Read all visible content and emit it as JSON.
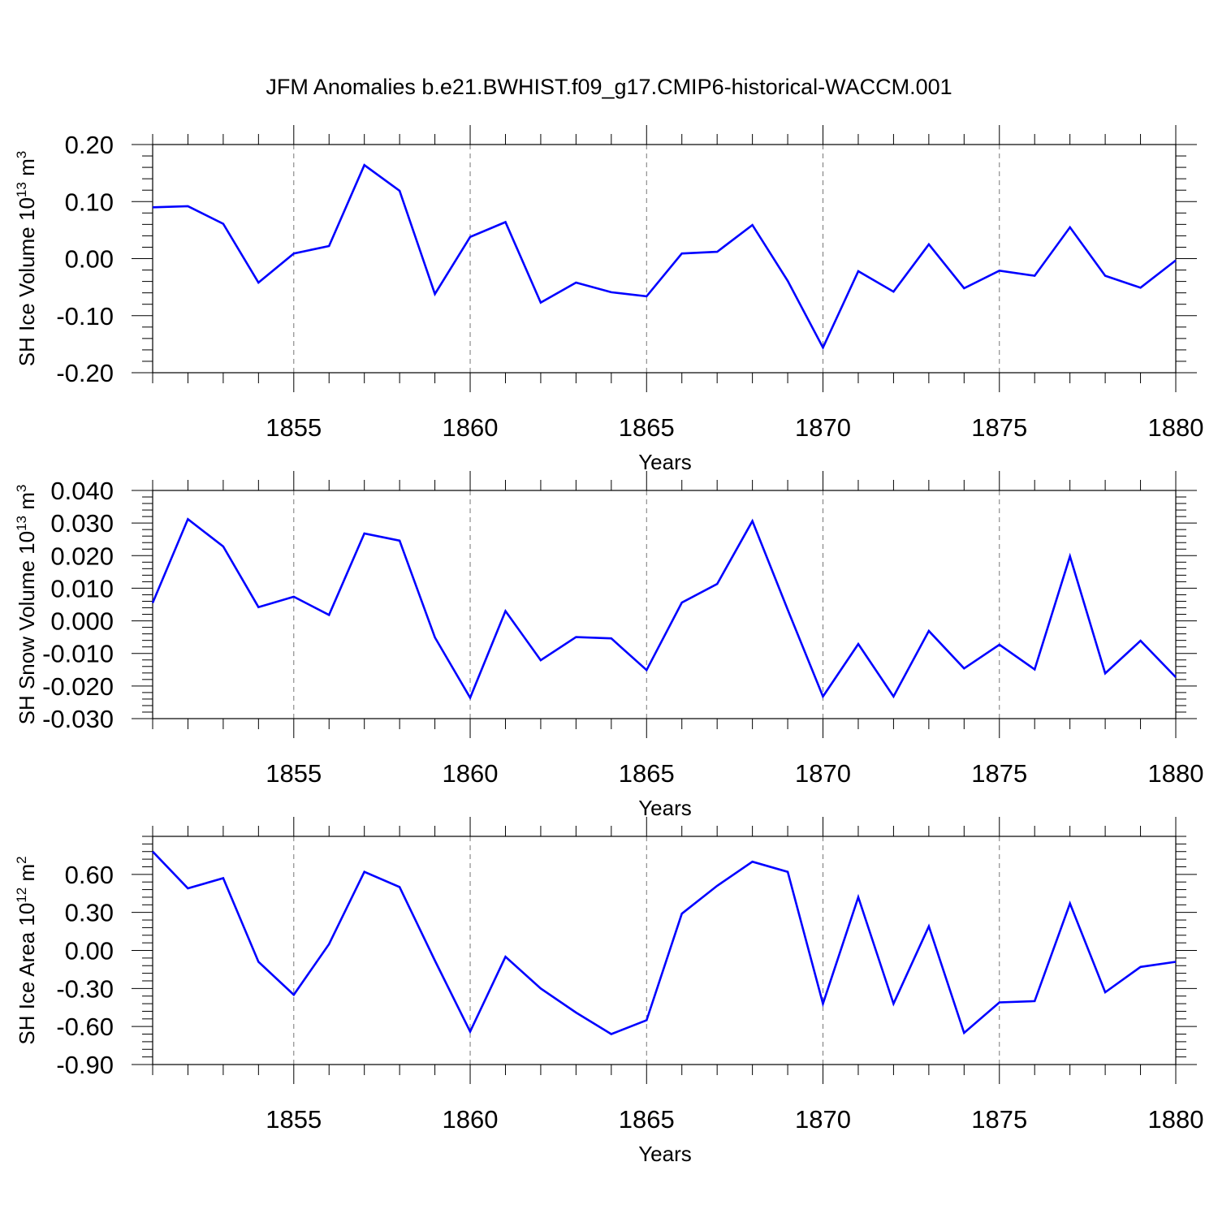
{
  "title": "JFM Anomalies b.e21.BWHIST.f09_g17.CMIP6-historical-WACCM.001",
  "chart_data": [
    {
      "type": "line",
      "ylabel": "SH Ice Volume 10",
      "ylabel_sup": "13",
      "ylabel_unit": " m",
      "ylabel_unit_sup": "3",
      "xlabel": "Years",
      "xlim": [
        1851,
        1880
      ],
      "ylim": [
        -0.2,
        0.2
      ],
      "yticks": [
        -0.2,
        -0.1,
        0.0,
        0.1,
        0.2
      ],
      "ytick_labels": [
        "-0.20",
        "-0.10",
        "0.00",
        "0.10",
        "0.20"
      ],
      "xticks": [
        1855,
        1860,
        1865,
        1870,
        1875,
        1880
      ],
      "xtick_labels": [
        "1855",
        "1860",
        "1865",
        "1870",
        "1875",
        "1880"
      ],
      "grid": "vertical dashed at labeled years",
      "color": "#0000ff",
      "x": [
        1851,
        1852,
        1853,
        1854,
        1855,
        1856,
        1857,
        1858,
        1859,
        1860,
        1861,
        1862,
        1863,
        1864,
        1865,
        1866,
        1867,
        1868,
        1869,
        1870,
        1871,
        1872,
        1873,
        1874,
        1875,
        1876,
        1877,
        1878,
        1879,
        1880
      ],
      "y": [
        0.09,
        0.092,
        0.061,
        -0.042,
        0.009,
        0.022,
        0.164,
        0.119,
        -0.062,
        0.038,
        0.064,
        -0.077,
        -0.042,
        -0.059,
        -0.066,
        0.009,
        0.012,
        0.059,
        -0.039,
        -0.156,
        -0.022,
        -0.058,
        0.025,
        -0.052,
        -0.021,
        -0.03,
        0.055,
        -0.03,
        -0.051,
        -0.003
      ]
    },
    {
      "type": "line",
      "ylabel": "SH Snow Volume 10",
      "ylabel_sup": "13",
      "ylabel_unit": " m",
      "ylabel_unit_sup": "3",
      "xlabel": "Years",
      "xlim": [
        1851,
        1880
      ],
      "ylim": [
        -0.03,
        0.04
      ],
      "yticks": [
        -0.03,
        -0.02,
        -0.01,
        0.0,
        0.01,
        0.02,
        0.03,
        0.04
      ],
      "ytick_labels": [
        "-0.030",
        "-0.020",
        "-0.010",
        "0.000",
        "0.010",
        "0.020",
        "0.030",
        "0.040"
      ],
      "xticks": [
        1855,
        1860,
        1865,
        1870,
        1875,
        1880
      ],
      "xtick_labels": [
        "1855",
        "1860",
        "1865",
        "1870",
        "1875",
        "1880"
      ],
      "grid": "vertical dashed at labeled years",
      "color": "#0000ff",
      "x": [
        1851,
        1852,
        1853,
        1854,
        1855,
        1856,
        1857,
        1858,
        1859,
        1860,
        1861,
        1862,
        1863,
        1864,
        1865,
        1866,
        1867,
        1868,
        1869,
        1870,
        1871,
        1872,
        1873,
        1874,
        1875,
        1876,
        1877,
        1878,
        1879,
        1880
      ],
      "y": [
        0.0055,
        0.0312,
        0.0228,
        0.0042,
        0.0074,
        0.0018,
        0.0268,
        0.0246,
        -0.0051,
        -0.0236,
        0.003,
        -0.0121,
        -0.005,
        -0.0054,
        -0.0151,
        0.0056,
        0.0113,
        0.0306,
        0.0034,
        -0.0232,
        -0.0071,
        -0.0232,
        -0.0031,
        -0.0146,
        -0.0073,
        -0.0149,
        0.0198,
        -0.0161,
        -0.0061,
        -0.0173
      ]
    },
    {
      "type": "line",
      "ylabel": "SH Ice Area 10",
      "ylabel_sup": "12",
      "ylabel_unit": " m",
      "ylabel_unit_sup": "2",
      "xlabel": "Years",
      "xlim": [
        1851,
        1880
      ],
      "ylim": [
        -0.9,
        0.9
      ],
      "yticks": [
        -0.9,
        -0.6,
        -0.3,
        0.0,
        0.3,
        0.6
      ],
      "ytick_labels": [
        "-0.90",
        "-0.60",
        "-0.30",
        "0.00",
        "0.30",
        "0.60"
      ],
      "xticks": [
        1855,
        1860,
        1865,
        1870,
        1875,
        1880
      ],
      "xtick_labels": [
        "1855",
        "1860",
        "1865",
        "1870",
        "1875",
        "1880"
      ],
      "grid": "vertical dashed at labeled years",
      "color": "#0000ff",
      "x": [
        1851,
        1852,
        1853,
        1854,
        1855,
        1856,
        1857,
        1858,
        1859,
        1860,
        1861,
        1862,
        1863,
        1864,
        1865,
        1866,
        1867,
        1868,
        1869,
        1870,
        1871,
        1872,
        1873,
        1874,
        1875,
        1876,
        1877,
        1878,
        1879,
        1880
      ],
      "y": [
        0.78,
        0.49,
        0.57,
        -0.09,
        -0.35,
        0.05,
        0.62,
        0.5,
        -0.08,
        -0.64,
        -0.05,
        -0.3,
        -0.49,
        -0.66,
        -0.55,
        0.29,
        0.51,
        0.7,
        0.62,
        -0.42,
        0.42,
        -0.42,
        0.19,
        -0.65,
        -0.41,
        -0.4,
        0.37,
        -0.33,
        -0.13,
        -0.09
      ]
    }
  ]
}
